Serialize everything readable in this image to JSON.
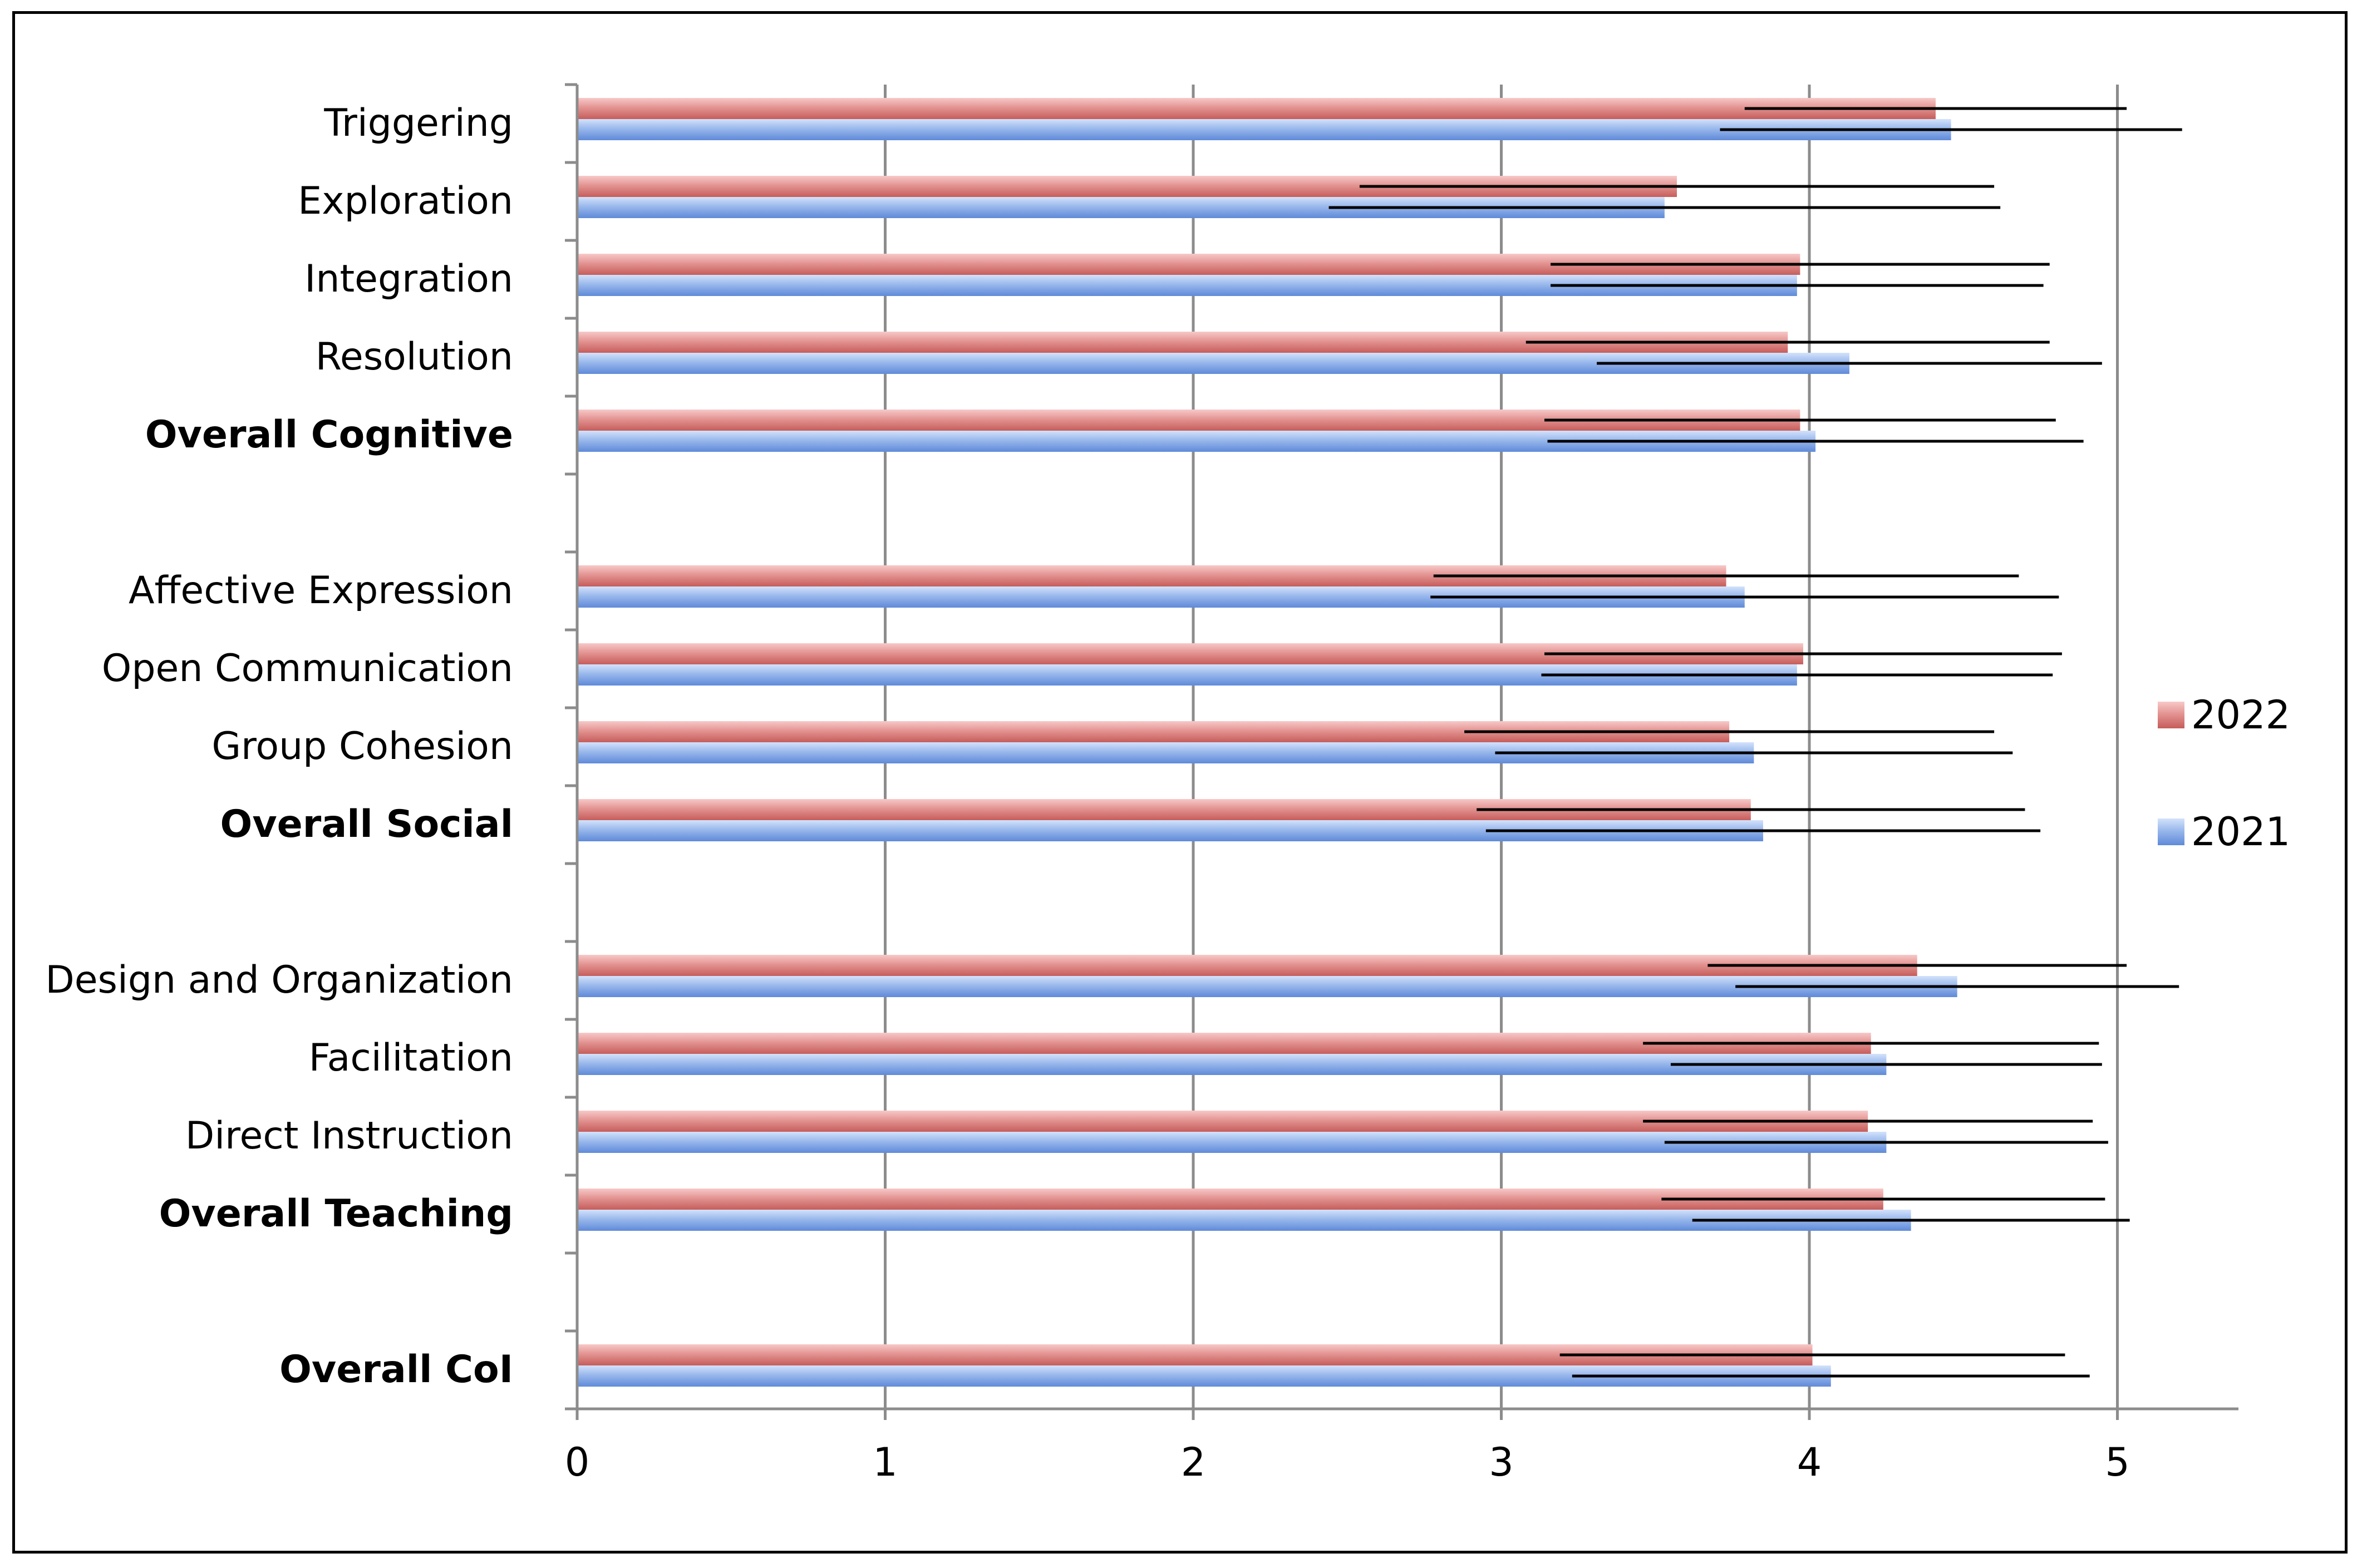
{
  "chart_data": {
    "type": "bar",
    "orientation": "horizontal",
    "title": "",
    "xlabel": "",
    "ylabel": "",
    "xlim": [
      0,
      5.4
    ],
    "x_ticks": [
      "0",
      "1",
      "2",
      "3",
      "4",
      "5"
    ],
    "grid": "vertical",
    "legend_position": "right",
    "rows": [
      {
        "label": "Triggering",
        "bold": false,
        "v2022": 4.41,
        "e2022": 0.62,
        "v2021": 4.46,
        "e2021": 0.75
      },
      {
        "label": "Exploration",
        "bold": false,
        "v2022": 3.57,
        "e2022": 1.03,
        "v2021": 3.53,
        "e2021": 1.09
      },
      {
        "label": "Integration",
        "bold": false,
        "v2022": 3.97,
        "e2022": 0.81,
        "v2021": 3.96,
        "e2021": 0.8
      },
      {
        "label": "Resolution",
        "bold": false,
        "v2022": 3.93,
        "e2022": 0.85,
        "v2021": 4.13,
        "e2021": 0.82
      },
      {
        "label": "Overall Cognitive",
        "bold": true,
        "v2022": 3.97,
        "e2022": 0.83,
        "v2021": 4.02,
        "e2021": 0.87
      },
      {
        "label": "",
        "bold": false,
        "spacer": true
      },
      {
        "label": "Affective Expression",
        "bold": false,
        "v2022": 3.73,
        "e2022": 0.95,
        "v2021": 3.79,
        "e2021": 1.02
      },
      {
        "label": "Open Communication",
        "bold": false,
        "v2022": 3.98,
        "e2022": 0.84,
        "v2021": 3.96,
        "e2021": 0.83
      },
      {
        "label": "Group Cohesion",
        "bold": false,
        "v2022": 3.74,
        "e2022": 0.86,
        "v2021": 3.82,
        "e2021": 0.84
      },
      {
        "label": "Overall Social",
        "bold": true,
        "v2022": 3.81,
        "e2022": 0.89,
        "v2021": 3.85,
        "e2021": 0.9
      },
      {
        "label": "",
        "bold": false,
        "spacer": true
      },
      {
        "label": "Design and Organization",
        "bold": false,
        "v2022": 4.35,
        "e2022": 0.68,
        "v2021": 4.48,
        "e2021": 0.72
      },
      {
        "label": "Facilitation",
        "bold": false,
        "v2022": 4.2,
        "e2022": 0.74,
        "v2021": 4.25,
        "e2021": 0.7
      },
      {
        "label": "Direct Instruction",
        "bold": false,
        "v2022": 4.19,
        "e2022": 0.73,
        "v2021": 4.25,
        "e2021": 0.72
      },
      {
        "label": "Overall Teaching",
        "bold": true,
        "v2022": 4.24,
        "e2022": 0.72,
        "v2021": 4.33,
        "e2021": 0.71
      },
      {
        "label": "",
        "bold": false,
        "spacer": true
      },
      {
        "label": "Overall CoI",
        "bold": true,
        "v2022": 4.01,
        "e2022": 0.82,
        "v2021": 4.07,
        "e2021": 0.84
      }
    ],
    "series": [
      {
        "name": "2022",
        "color": "#d06a68",
        "light": "#f5c3c2"
      },
      {
        "name": "2021",
        "color": "#6e97df",
        "light": "#c9dafa"
      }
    ]
  }
}
